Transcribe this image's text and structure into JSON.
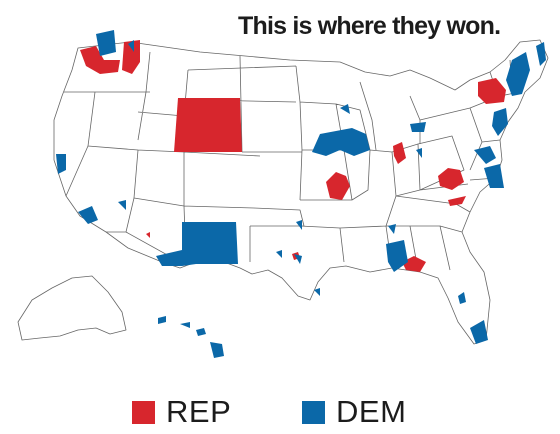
{
  "title": "This is where they won.",
  "colors": {
    "rep": "#d7262d",
    "dem": "#0b68a8",
    "state_fill": "#ffffff",
    "border": "#666666",
    "text": "#1c1c1c"
  },
  "legend": [
    {
      "key": "rep",
      "label": "REP"
    },
    {
      "key": "dem",
      "label": "DEM"
    }
  ],
  "regions": [
    {
      "name": "Washington (west)",
      "party": "rep"
    },
    {
      "name": "Washington (east)",
      "party": "rep"
    },
    {
      "name": "Washington (Seattle)",
      "party": "dem"
    },
    {
      "name": "Wyoming",
      "party": "rep"
    },
    {
      "name": "New Mexico",
      "party": "dem"
    },
    {
      "name": "Missouri (east)",
      "party": "rep"
    },
    {
      "name": "Illinois (north)",
      "party": "dem"
    },
    {
      "name": "Indiana",
      "party": "rep"
    },
    {
      "name": "West Virginia",
      "party": "rep"
    },
    {
      "name": "Virginia (southwest)",
      "party": "rep"
    },
    {
      "name": "New York (north)",
      "party": "rep"
    },
    {
      "name": "New England",
      "party": "dem"
    },
    {
      "name": "Georgia (south)",
      "party": "rep"
    },
    {
      "name": "Alabama",
      "party": "dem"
    },
    {
      "name": "Florida (south)",
      "party": "dem"
    },
    {
      "name": "California (Los Angeles)",
      "party": "dem"
    },
    {
      "name": "Hawaii",
      "party": "dem"
    }
  ]
}
